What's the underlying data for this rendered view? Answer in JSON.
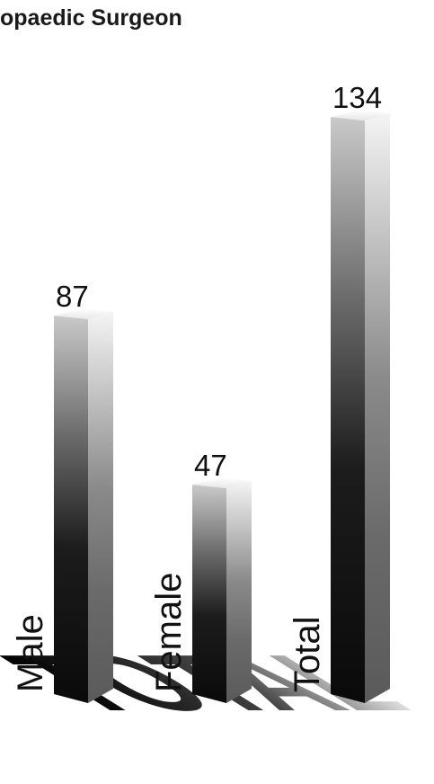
{
  "chart_data": {
    "type": "bar",
    "title": "opaedic Surgeon",
    "categories": [
      "Male",
      "Female",
      "Total"
    ],
    "values": [
      87,
      47,
      134
    ],
    "data_labels": [
      "87",
      "47",
      "134"
    ],
    "floor_label": "TOTAL",
    "ylim": [
      0,
      134
    ],
    "grid": false,
    "style": "3d-gradient-columns",
    "colors": {
      "bar_light": "#f4f4f4",
      "bar_mid": "#8a8a8a",
      "bar_dark": "#0e0e0e",
      "side_light": "#c9c9c9",
      "side_dark": "#1c1c1c",
      "text": "#111111"
    }
  }
}
